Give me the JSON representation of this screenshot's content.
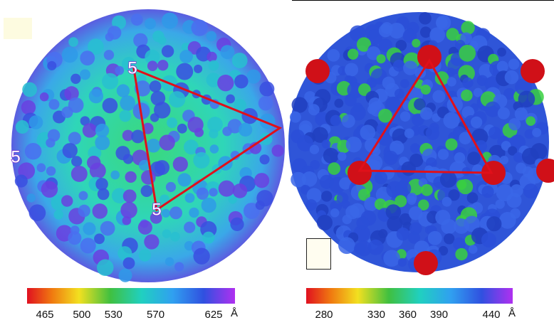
{
  "panels": [
    {
      "vertex_labels": [
        "5",
        "5",
        "5"
      ],
      "colorbar": {
        "ticks": [
          465,
          500,
          530,
          570,
          625
        ],
        "unit": "Å"
      }
    },
    {
      "colorbar": {
        "ticks": [
          280,
          330,
          360,
          390,
          440
        ],
        "unit": "Å"
      }
    }
  ]
}
